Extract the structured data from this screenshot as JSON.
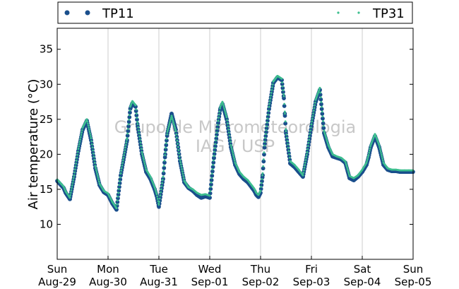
{
  "chart_data": {
    "type": "scatter",
    "ylabel": "Air temperature (°C)",
    "ylim": [
      5,
      38
    ],
    "xlim": [
      "2021-08-29 00:00",
      "2021-09-05 00:00"
    ],
    "yticks": [
      10,
      15,
      20,
      25,
      30,
      35
    ],
    "xticks": [
      {
        "day": "Sun",
        "date": "Aug-29"
      },
      {
        "day": "Mon",
        "date": "Aug-30"
      },
      {
        "day": "Tue",
        "date": "Aug-31"
      },
      {
        "day": "Wed",
        "date": "Sep-01"
      },
      {
        "day": "Thu",
        "date": "Sep-02"
      },
      {
        "day": "Fri",
        "date": "Sep-03"
      },
      {
        "day": "Sat",
        "date": "Sep-04"
      },
      {
        "day": "Sun",
        "date": "Sep-05"
      }
    ],
    "grid": "vertical",
    "legend": "top",
    "watermark": [
      "Grupo de Micrometeorologia",
      "IAG / USP"
    ],
    "series": [
      {
        "name": "TP11",
        "color": "#1a4f8c",
        "marker": "large-dot",
        "x_hours": [
          0,
          3,
          4,
          6,
          8,
          10,
          12,
          14,
          16,
          18,
          20,
          22,
          24,
          26,
          28,
          30,
          33,
          34.5,
          35.5,
          37,
          38,
          40,
          42,
          44,
          46,
          47,
          48,
          50,
          51,
          52,
          54,
          56,
          58,
          60,
          62,
          64,
          66,
          68,
          70,
          72,
          74,
          76,
          77,
          78,
          80,
          82,
          84,
          86,
          88,
          90,
          92,
          93,
          94,
          95,
          96,
          97,
          98,
          100,
          102,
          104,
          106,
          107,
          107.5,
          108,
          110,
          112,
          114,
          116,
          118,
          120,
          122,
          124,
          126,
          128,
          130,
          132,
          134,
          136,
          138,
          140,
          142,
          144,
          146,
          147,
          148,
          150,
          152,
          154,
          156,
          158,
          160,
          162,
          164,
          166,
          168
        ],
        "values": [
          16.2,
          15.2,
          14.5,
          13.6,
          16.8,
          20.5,
          23.5,
          24.8,
          22.0,
          18.0,
          15.6,
          14.6,
          14.2,
          13.0,
          12.1,
          17.0,
          22.0,
          26.5,
          27.3,
          26.8,
          24.0,
          20.0,
          17.5,
          16.5,
          15.0,
          14.0,
          12.5,
          16.5,
          20.0,
          23.0,
          25.8,
          23.5,
          19.0,
          16.0,
          15.2,
          14.8,
          14.2,
          13.8,
          14.0,
          13.8,
          19.5,
          24.5,
          26.5,
          27.2,
          25.0,
          21.0,
          18.5,
          17.2,
          16.5,
          16.0,
          15.2,
          14.8,
          14.2,
          13.9,
          14.5,
          17.0,
          21.5,
          26.5,
          30.2,
          31.0,
          30.6,
          28.0,
          25.5,
          23.0,
          18.7,
          18.2,
          17.5,
          16.8,
          20.0,
          24.0,
          27.5,
          29.2,
          23.0,
          21.0,
          19.7,
          19.5,
          19.3,
          18.8,
          16.6,
          16.3,
          16.8,
          17.5,
          18.5,
          19.6,
          21.0,
          22.6,
          21.0,
          18.5,
          17.8,
          17.6,
          17.6,
          17.5,
          17.5,
          17.5,
          17.5
        ]
      },
      {
        "name": "TP31",
        "color": "#3dbe8f",
        "marker": "small-dot",
        "x_hours": [
          0,
          3,
          4,
          6,
          8,
          10,
          12,
          14,
          16,
          18,
          20,
          22,
          24,
          26,
          28,
          30,
          33,
          34.5,
          35.5,
          37,
          38,
          40,
          42,
          44,
          46,
          47,
          48,
          50,
          51,
          52,
          54,
          56,
          58,
          60,
          62,
          64,
          66,
          68,
          70,
          72,
          74,
          76,
          77,
          78,
          80,
          82,
          84,
          86,
          88,
          90,
          92,
          93,
          94,
          95,
          96,
          97,
          98,
          100,
          102,
          104,
          106,
          107,
          107.5,
          108,
          110,
          112,
          114,
          116,
          118,
          120,
          122,
          124,
          126,
          128,
          130,
          132,
          134,
          136,
          138,
          140,
          142,
          144,
          146,
          147,
          148,
          150,
          152,
          154,
          156,
          158,
          160,
          162,
          164,
          166,
          168
        ],
        "values": [
          16.4,
          15.4,
          14.7,
          13.8,
          17.0,
          20.8,
          23.8,
          25.0,
          22.3,
          18.3,
          15.8,
          14.8,
          14.4,
          13.2,
          12.3,
          17.3,
          22.3,
          26.8,
          27.6,
          27.0,
          24.3,
          20.3,
          17.8,
          16.8,
          15.3,
          14.3,
          12.8,
          16.8,
          20.3,
          23.2,
          25.5,
          23.3,
          19.2,
          16.2,
          15.3,
          15.0,
          14.5,
          14.2,
          14.3,
          14.1,
          19.8,
          24.8,
          26.8,
          27.5,
          25.3,
          21.3,
          18.8,
          17.5,
          16.8,
          16.3,
          15.5,
          15.1,
          14.5,
          14.2,
          14.8,
          17.3,
          21.8,
          26.8,
          30.4,
          31.2,
          30.8,
          28.3,
          25.8,
          23.3,
          19.0,
          18.5,
          17.8,
          17.0,
          20.3,
          24.3,
          27.8,
          29.5,
          23.3,
          21.3,
          20.0,
          19.7,
          19.5,
          19.0,
          16.9,
          16.6,
          17.0,
          17.8,
          18.8,
          19.9,
          21.3,
          22.9,
          21.3,
          18.8,
          18.0,
          17.8,
          17.8,
          17.7,
          17.7,
          17.7,
          17.7
        ]
      }
    ]
  }
}
